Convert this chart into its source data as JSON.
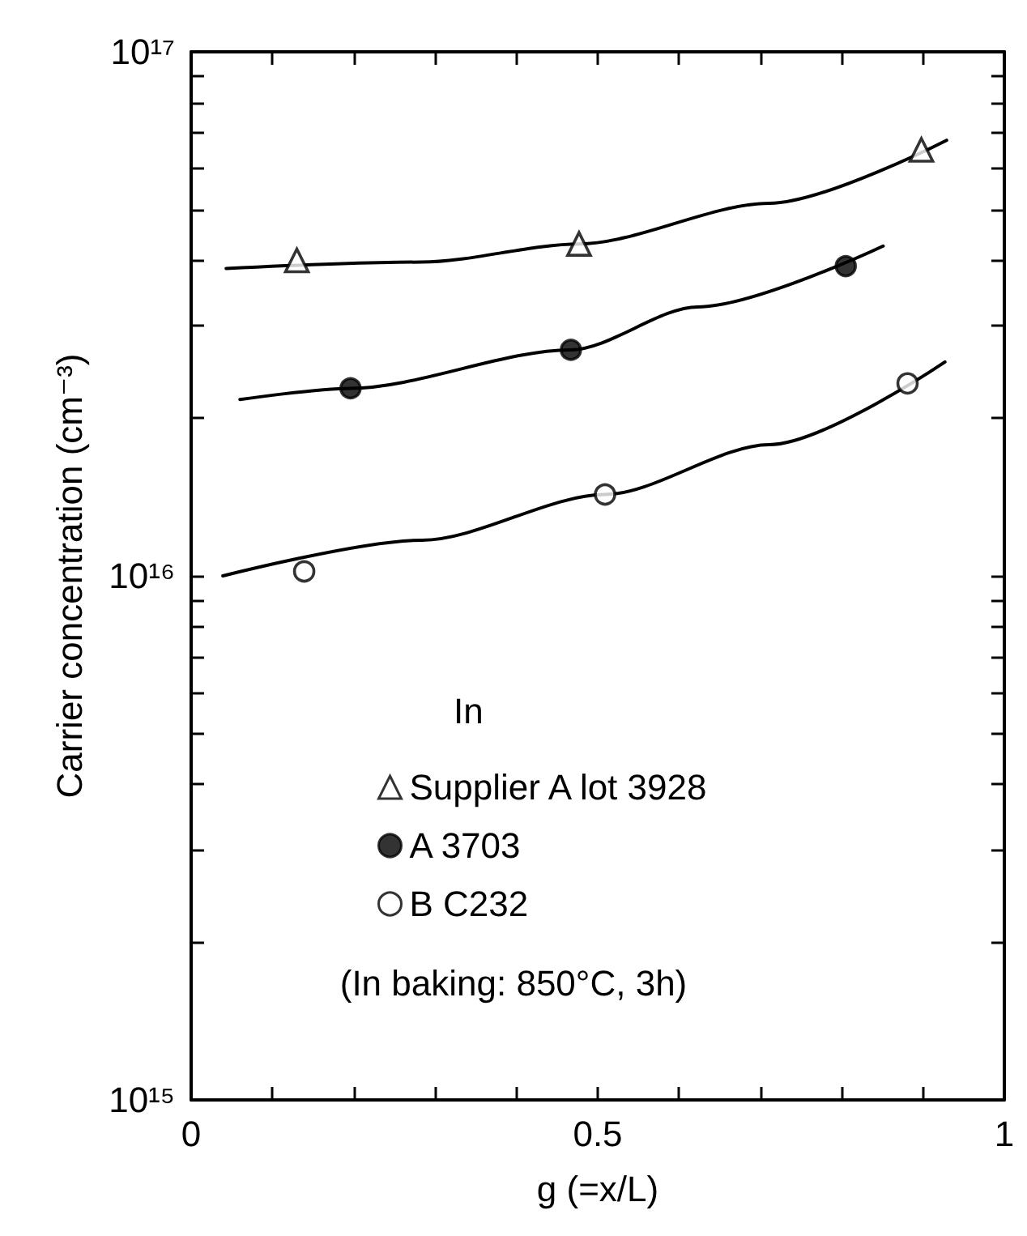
{
  "chart_data": {
    "type": "scatter",
    "xlabel": "g (=x/L)",
    "ylabel": "Carrier concentration (cm⁻³)",
    "legend_title": "In",
    "annotations": [
      "(In baking: 850°C, 3h)"
    ],
    "series": [
      {
        "name": "Supplier A lot 3928",
        "type": "scatter",
        "marker": "triangle",
        "color": "#ffffff",
        "x": [
          0.13,
          0.477,
          0.898
        ],
        "values": [
          4e+16,
          4.3e+16,
          6.5e+16
        ]
      },
      {
        "name": "A 3703",
        "type": "scatter",
        "marker": "circle",
        "color": "#000000",
        "x": [
          0.196,
          0.467,
          0.805
        ],
        "values": [
          2.28e+16,
          2.7e+16,
          3.9e+16
        ]
      },
      {
        "name": "B C232",
        "type": "scatter",
        "marker": "circle",
        "color": "#ffffff",
        "x": [
          0.139,
          0.509,
          0.881
        ],
        "values": [
          1.02e+16,
          1.43e+16,
          2.33e+16
        ]
      },
      {
        "type": "line",
        "marker": "none",
        "color": "#000000",
        "x": [
          0.043,
          0.284,
          0.477,
          0.711,
          0.929
        ],
        "values": [
          3.86e+16,
          3.97e+16,
          4.3e+16,
          5.14e+16,
          6.78e+16
        ]
      },
      {
        "type": "line",
        "marker": "none",
        "color": "#000000",
        "x": [
          0.06,
          0.196,
          0.467,
          0.623,
          0.851
        ],
        "values": [
          2.17e+16,
          2.28e+16,
          2.7e+16,
          3.26e+16,
          4.26e+16
        ]
      },
      {
        "type": "line",
        "marker": "none",
        "color": "#000000",
        "x": [
          0.039,
          0.284,
          0.509,
          0.711,
          0.927
        ],
        "values": [
          1e+16,
          1.17e+16,
          1.43e+16,
          1.78e+16,
          2.56e+16
        ]
      }
    ],
    "xlim": [
      0,
      1
    ],
    "xticks": [
      0,
      {
        "value": 0.1,
        "label": null
      },
      {
        "value": 0.2,
        "label": null
      },
      {
        "value": 0.3,
        "label": null
      },
      {
        "value": 0.4,
        "label": null
      },
      0.5,
      {
        "value": 0.6,
        "label": null
      },
      {
        "value": 0.7,
        "label": null
      },
      {
        "value": 0.8,
        "label": null
      },
      {
        "value": 0.9,
        "label": null
      },
      1
    ],
    "ylim": [
      1000000000000000.0,
      1e+17
    ],
    "yticks": [
      {
        "value": 1000000000000000.0,
        "label": "10¹⁵"
      },
      {
        "value": 2000000000000000.0,
        "label": null
      },
      {
        "value": 3000000000000000.0,
        "label": null
      },
      {
        "value": 4000000000000000.0,
        "label": null
      },
      {
        "value": 5000000000000000.0,
        "label": null
      },
      {
        "value": 6000000000000000.0,
        "label": null
      },
      {
        "value": 7000000000000000.0,
        "label": null
      },
      {
        "value": 8000000000000000.0,
        "label": null
      },
      {
        "value": 9000000000000000.0,
        "label": null
      },
      {
        "value": 1e+16,
        "label": "10¹⁶"
      },
      {
        "value": 2e+16,
        "label": null
      },
      {
        "value": 3e+16,
        "label": null
      },
      {
        "value": 4e+16,
        "label": null
      },
      {
        "value": 5e+16,
        "label": null
      },
      {
        "value": 6e+16,
        "label": null
      },
      {
        "value": 7e+16,
        "label": null
      },
      {
        "value": 8e+16,
        "label": null
      },
      {
        "value": 9e+16,
        "label": null
      },
      {
        "value": 1e+17,
        "label": "10¹⁷"
      }
    ],
    "log": "y",
    "grid": false,
    "legend": "bottom"
  }
}
